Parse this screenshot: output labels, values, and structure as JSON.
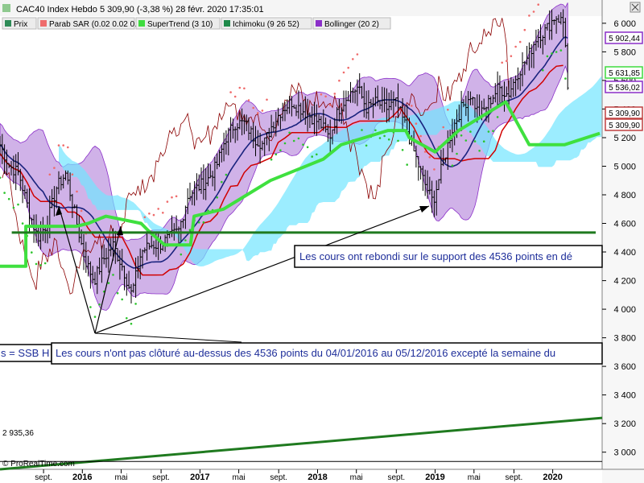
{
  "header": {
    "title": "CAC40 Index Hebdo 5 309,90 (-3,38 %) 28 févr. 2020 17:35:01"
  },
  "legend": [
    {
      "label": "Prix",
      "color": "#2e8b57"
    },
    {
      "label": "Parab SAR (0.02 0.02 0.2)",
      "color": "#ef6b6b"
    },
    {
      "label": "SuperTrend (3 10)",
      "color": "#3fdc3f"
    },
    {
      "label": "Ichimoku (9 26 52)",
      "color": "#1f8a4a"
    },
    {
      "label": "Bollinger (20 2)",
      "color": "#8b2fc9"
    }
  ],
  "colors": {
    "price": "#000000",
    "bollinger_fill": "#b07fd8",
    "bollinger_mid": "#1a237e",
    "kijun": "#d10000",
    "chikou": "#8b0000",
    "cloud_bull": "#72e6ff",
    "cloud_bear": "#5cd65c",
    "supertrend": "#3fe03f",
    "support": "#1f7a1f",
    "sar_bull": "#2cc42c",
    "sar_bear": "#ef6b6b",
    "annotation_text": "#1e2e9a"
  },
  "value_boxes": [
    {
      "value": "5 902,44",
      "color": "#8b2fc9"
    },
    {
      "value": "5 631,85",
      "color": "#3fdc3f"
    },
    {
      "value": "5 536,02",
      "color": "#8b2fc9"
    },
    {
      "value": "5 309,90",
      "color": "#c04040"
    },
    {
      "value": "5 309,90",
      "color": "#c04040"
    }
  ],
  "annotations": {
    "support_note": "Les cours ont rebondi sur le support des 4536 points en dé",
    "lower_note": "Les cours n'ont pas clôturé au-dessus des 4536 points du 04/01/2016 au 05/12/2016 excepté la semaine du",
    "left_note": "s = SSB H",
    "low_value": "2 935,36"
  },
  "watermark": "© ProRealTime.com",
  "brand": "© ProRealTime.com",
  "chart_data": {
    "type": "line",
    "title": "CAC40 Index Hebdo 5 309,90 (-3,38 %) 28 févr. 2020 17:35:01",
    "y_ticks": [
      3000,
      3200,
      3400,
      3600,
      3800,
      4000,
      4200,
      4400,
      4600,
      4800,
      5000,
      5200,
      5400,
      5600,
      5800,
      6000
    ],
    "y_tick_labels": [
      "3 000",
      "3 200",
      "3 400",
      "3 600",
      "3 800",
      "4 000",
      "4 200",
      "4 400",
      "4 600",
      "4 800",
      "5 000",
      "5 200",
      "5 400",
      "5 600",
      "5 800",
      "6 000"
    ],
    "ylim": [
      2880,
      6050
    ],
    "x_labels": [
      {
        "label": "sept.",
        "t": 2015.67,
        "bold": false
      },
      {
        "label": "2016",
        "t": 2016.0,
        "bold": true
      },
      {
        "label": "mai",
        "t": 2016.33,
        "bold": false
      },
      {
        "label": "sept.",
        "t": 2016.67,
        "bold": false
      },
      {
        "label": "2017",
        "t": 2017.0,
        "bold": true
      },
      {
        "label": "mai",
        "t": 2017.33,
        "bold": false
      },
      {
        "label": "sept.",
        "t": 2017.67,
        "bold": false
      },
      {
        "label": "2018",
        "t": 2018.0,
        "bold": true
      },
      {
        "label": "mai",
        "t": 2018.33,
        "bold": false
      },
      {
        "label": "sept.",
        "t": 2018.67,
        "bold": false
      },
      {
        "label": "2019",
        "t": 2019.0,
        "bold": true
      },
      {
        "label": "mai",
        "t": 2019.33,
        "bold": false
      },
      {
        "label": "sept.",
        "t": 2019.67,
        "bold": false
      },
      {
        "label": "2020",
        "t": 2020.0,
        "bold": true
      }
    ],
    "xlim": [
      2015.3,
      2020.42
    ],
    "support_level": 4536,
    "low_level": 2935.36,
    "last_close": 5309.9,
    "price_points": [
      [
        2015.3,
        5150
      ],
      [
        2015.38,
        5000
      ],
      [
        2015.46,
        4950
      ],
      [
        2015.54,
        4700
      ],
      [
        2015.62,
        4500
      ],
      [
        2015.7,
        4600
      ],
      [
        2015.78,
        4850
      ],
      [
        2015.86,
        4950
      ],
      [
        2015.94,
        4650
      ],
      [
        2016.02,
        4350
      ],
      [
        2016.1,
        4200
      ],
      [
        2016.18,
        4350
      ],
      [
        2016.26,
        4450
      ],
      [
        2016.34,
        4300
      ],
      [
        2016.42,
        4100
      ],
      [
        2016.5,
        4400
      ],
      [
        2016.58,
        4450
      ],
      [
        2016.66,
        4450
      ],
      [
        2016.74,
        4500
      ],
      [
        2016.82,
        4550
      ],
      [
        2016.9,
        4800
      ],
      [
        2016.98,
        4850
      ],
      [
        2017.06,
        4900
      ],
      [
        2017.14,
        5000
      ],
      [
        2017.22,
        5200
      ],
      [
        2017.3,
        5300
      ],
      [
        2017.38,
        5300
      ],
      [
        2017.46,
        5200
      ],
      [
        2017.54,
        5150
      ],
      [
        2017.62,
        5300
      ],
      [
        2017.7,
        5400
      ],
      [
        2017.78,
        5450
      ],
      [
        2017.86,
        5400
      ],
      [
        2017.94,
        5350
      ],
      [
        2018.02,
        5300
      ],
      [
        2018.1,
        5200
      ],
      [
        2018.18,
        5400
      ],
      [
        2018.26,
        5500
      ],
      [
        2018.34,
        5550
      ],
      [
        2018.42,
        5400
      ],
      [
        2018.5,
        5450
      ],
      [
        2018.58,
        5400
      ],
      [
        2018.66,
        5450
      ],
      [
        2018.74,
        5300
      ],
      [
        2018.82,
        5100
      ],
      [
        2018.9,
        4900
      ],
      [
        2018.98,
        4750
      ],
      [
        2019.06,
        5000
      ],
      [
        2019.14,
        5250
      ],
      [
        2019.22,
        5400
      ],
      [
        2019.3,
        5500
      ],
      [
        2019.38,
        5350
      ],
      [
        2019.46,
        5450
      ],
      [
        2019.54,
        5550
      ],
      [
        2019.62,
        5500
      ],
      [
        2019.7,
        5650
      ],
      [
        2019.78,
        5750
      ],
      [
        2019.86,
        5900
      ],
      [
        2019.94,
        5950
      ],
      [
        2020.02,
        6050
      ],
      [
        2020.1,
        6000
      ],
      [
        2020.14,
        5310
      ]
    ],
    "supertrend_points": [
      [
        2015.3,
        4300
      ],
      [
        2015.52,
        4300
      ],
      [
        2015.52,
        4580
      ],
      [
        2015.95,
        4580
      ],
      [
        2016.05,
        4600
      ],
      [
        2016.2,
        4650
      ],
      [
        2016.5,
        4600
      ],
      [
        2016.56,
        4550
      ],
      [
        2016.7,
        4450
      ],
      [
        2016.92,
        4450
      ],
      [
        2016.95,
        4650
      ],
      [
        2017.2,
        4700
      ],
      [
        2017.4,
        4800
      ],
      [
        2017.6,
        4900
      ],
      [
        2018.05,
        5050
      ],
      [
        2018.2,
        5150
      ],
      [
        2018.4,
        5200
      ],
      [
        2018.6,
        5250
      ],
      [
        2018.75,
        5250
      ],
      [
        2018.78,
        5200
      ],
      [
        2019.0,
        5100
      ],
      [
        2019.2,
        5250
      ],
      [
        2019.4,
        5350
      ],
      [
        2019.6,
        5450
      ],
      [
        2019.8,
        5150
      ],
      [
        2020.1,
        5150
      ],
      [
        2020.4,
        5230
      ]
    ],
    "series": [
      {
        "name": "Prix"
      },
      {
        "name": "Parab SAR (0.02 0.02 0.2)"
      },
      {
        "name": "SuperTrend (3 10)"
      },
      {
        "name": "Ichimoku (9 26 52)"
      },
      {
        "name": "Bollinger (20 2)"
      }
    ]
  }
}
